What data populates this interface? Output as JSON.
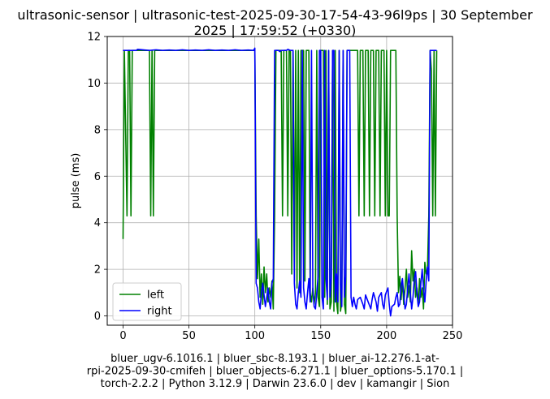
{
  "chart_data": {
    "type": "line",
    "title_lines": [
      "ultrasonic-sensor | ultrasonic-test-2025-09-30-17-54-43-96l9ps | 30 September",
      "2025 | 17:59:52 (+0330)"
    ],
    "xlabel_lines": [
      "bluer_ugv-6.1016.1 | bluer_sbc-8.193.1 | bluer_ai-12.276.1-at-",
      "rpi-2025-09-30-cmifeh | bluer_objects-6.271.1 | bluer_options-5.170.1 |",
      "torch-2.2.2 | Python 3.12.9 | Darwin 23.6.0 | dev | kamangir | Sion"
    ],
    "ylabel": "pulse (ms)",
    "xlim": [
      -12,
      250
    ],
    "ylim": [
      -0.4,
      12
    ],
    "xticks": [
      0,
      50,
      100,
      150,
      200,
      250
    ],
    "yticks": [
      0,
      2,
      4,
      6,
      8,
      10,
      12
    ],
    "grid": true,
    "legend_position": "lower-left",
    "series": [
      {
        "name": "left",
        "color": "#008000",
        "points": [
          [
            0,
            3.3
          ],
          [
            1,
            11.4
          ],
          [
            3,
            4.3
          ],
          [
            4,
            11.4
          ],
          [
            5,
            11.4
          ],
          [
            6,
            4.3
          ],
          [
            7,
            11.4
          ],
          [
            9,
            11.4
          ],
          [
            20,
            11.4
          ],
          [
            21,
            4.3
          ],
          [
            22,
            11.4
          ],
          [
            23,
            4.3
          ],
          [
            24,
            11.4
          ],
          [
            100,
            11.4
          ],
          [
            101,
            4.3
          ],
          [
            102,
            1.6
          ],
          [
            103,
            3.3
          ],
          [
            104,
            0.8
          ],
          [
            105,
            1.8
          ],
          [
            106,
            0.5
          ],
          [
            107,
            2.1
          ],
          [
            108,
            1.0
          ],
          [
            109,
            1.8
          ],
          [
            110,
            0.6
          ],
          [
            111,
            1.2
          ],
          [
            112,
            0.8
          ],
          [
            113,
            1.5
          ],
          [
            114,
            0.3
          ],
          [
            115,
            4.3
          ],
          [
            116,
            11.4
          ],
          [
            117,
            11.4
          ],
          [
            118,
            11.4
          ],
          [
            119,
            11.4
          ],
          [
            120,
            11.4
          ],
          [
            121,
            4.3
          ],
          [
            122,
            11.4
          ],
          [
            124,
            11.4
          ],
          [
            125,
            4.3
          ],
          [
            126,
            11.4
          ],
          [
            127,
            11.4
          ],
          [
            128,
            1.8
          ],
          [
            129,
            11.4
          ],
          [
            130,
            1.5
          ],
          [
            131,
            11.4
          ],
          [
            132,
            1.2
          ],
          [
            133,
            11.4
          ],
          [
            134,
            1.0
          ],
          [
            135,
            11.4
          ],
          [
            137,
            11.4
          ],
          [
            138,
            1.5
          ],
          [
            139,
            11.4
          ],
          [
            141,
            11.4
          ],
          [
            142,
            1.0
          ],
          [
            143,
            0.6
          ],
          [
            144,
            1.2
          ],
          [
            145,
            0.5
          ],
          [
            146,
            1.0
          ],
          [
            147,
            11.4
          ],
          [
            148,
            0.8
          ],
          [
            149,
            0.4
          ],
          [
            150,
            11.4
          ],
          [
            152,
            11.4
          ],
          [
            153,
            0.8
          ],
          [
            154,
            11.4
          ],
          [
            155,
            0.5
          ],
          [
            156,
            11.4
          ],
          [
            157,
            0.3
          ],
          [
            158,
            0.6
          ],
          [
            159,
            11.4
          ],
          [
            160,
            0.2
          ],
          [
            161,
            11.4
          ],
          [
            162,
            0.6
          ],
          [
            163,
            0.1
          ],
          [
            164,
            11.4
          ],
          [
            165,
            0.2
          ],
          [
            166,
            0.6
          ],
          [
            167,
            11.4
          ],
          [
            168,
            0.5
          ],
          [
            169,
            0.1
          ],
          [
            170,
            11.4
          ],
          [
            171,
            11.4
          ],
          [
            172,
            11.4
          ],
          [
            173,
            11.4
          ],
          [
            174,
            11.4
          ],
          [
            175,
            11.4
          ],
          [
            176,
            11.4
          ],
          [
            177,
            11.4
          ],
          [
            178,
            11.4
          ],
          [
            179,
            4.3
          ],
          [
            180,
            11.4
          ],
          [
            182,
            11.4
          ],
          [
            183,
            4.3
          ],
          [
            184,
            11.4
          ],
          [
            186,
            11.4
          ],
          [
            187,
            4.3
          ],
          [
            188,
            11.4
          ],
          [
            190,
            11.4
          ],
          [
            191,
            4.3
          ],
          [
            192,
            11.4
          ],
          [
            193,
            11.4
          ],
          [
            194,
            11.4
          ],
          [
            195,
            4.3
          ],
          [
            196,
            11.4
          ],
          [
            198,
            11.4
          ],
          [
            199,
            4.3
          ],
          [
            200,
            11.4
          ],
          [
            201,
            4.3
          ],
          [
            202,
            4.3
          ],
          [
            203,
            11.4
          ],
          [
            204,
            11.4
          ],
          [
            205,
            11.4
          ],
          [
            206,
            11.4
          ],
          [
            207,
            11.4
          ],
          [
            208,
            4.3
          ],
          [
            209,
            1.0
          ],
          [
            210,
            1.7
          ],
          [
            211,
            0.7
          ],
          [
            212,
            1.5
          ],
          [
            213,
            0.5
          ],
          [
            214,
            1.2
          ],
          [
            215,
            2.0
          ],
          [
            216,
            0.8
          ],
          [
            217,
            1.3
          ],
          [
            218,
            0.6
          ],
          [
            219,
            2.8
          ],
          [
            220,
            1.5
          ],
          [
            221,
            2.0
          ],
          [
            222,
            0.8
          ],
          [
            223,
            1.2
          ],
          [
            224,
            0.5
          ],
          [
            225,
            1.6
          ],
          [
            226,
            0.8
          ],
          [
            227,
            1.2
          ],
          [
            228,
            0.3
          ],
          [
            229,
            2.3
          ],
          [
            230,
            1.8
          ],
          [
            231,
            2.0
          ],
          [
            232,
            4.3
          ],
          [
            233,
            11.4
          ],
          [
            234,
            10.5
          ],
          [
            235,
            4.3
          ],
          [
            236,
            11.4
          ],
          [
            237,
            4.3
          ],
          [
            238,
            11.4
          ]
        ]
      },
      {
        "name": "right",
        "color": "#0000ff",
        "points": [
          [
            0,
            11.4
          ],
          [
            10,
            11.4
          ],
          [
            11,
            11.45
          ],
          [
            20,
            11.4
          ],
          [
            25,
            11.43
          ],
          [
            30,
            11.4
          ],
          [
            35,
            11.42
          ],
          [
            40,
            11.4
          ],
          [
            45,
            11.43
          ],
          [
            50,
            11.4
          ],
          [
            55,
            11.42
          ],
          [
            60,
            11.4
          ],
          [
            65,
            11.43
          ],
          [
            70,
            11.4
          ],
          [
            75,
            11.42
          ],
          [
            80,
            11.4
          ],
          [
            85,
            11.43
          ],
          [
            90,
            11.4
          ],
          [
            95,
            11.42
          ],
          [
            99,
            11.4
          ],
          [
            100,
            11.5
          ],
          [
            101,
            1.4
          ],
          [
            102,
            1.2
          ],
          [
            103,
            0.6
          ],
          [
            104,
            0.3
          ],
          [
            105,
            1.0
          ],
          [
            106,
            1.4
          ],
          [
            107,
            0.9
          ],
          [
            108,
            0.4
          ],
          [
            109,
            0.8
          ],
          [
            110,
            1.2
          ],
          [
            111,
            0.6
          ],
          [
            112,
            0.3
          ],
          [
            113,
            1.4
          ],
          [
            114,
            1.6
          ],
          [
            115,
            11.4
          ],
          [
            118,
            11.4
          ],
          [
            119,
            11.35
          ],
          [
            120,
            11.4
          ],
          [
            124,
            11.4
          ],
          [
            125,
            11.45
          ],
          [
            127,
            11.4
          ],
          [
            128,
            11.4
          ],
          [
            129,
            11.4
          ],
          [
            130,
            1.4
          ],
          [
            131,
            0.5
          ],
          [
            132,
            0.3
          ],
          [
            133,
            1.0
          ],
          [
            134,
            1.5
          ],
          [
            135,
            0.8
          ],
          [
            136,
            11.4
          ],
          [
            137,
            1.2
          ],
          [
            138,
            0.6
          ],
          [
            139,
            0.3
          ],
          [
            140,
            1.0
          ],
          [
            141,
            1.6
          ],
          [
            142,
            0.6
          ],
          [
            143,
            11.4
          ],
          [
            144,
            1.2
          ],
          [
            145,
            0.4
          ],
          [
            146,
            0.3
          ],
          [
            147,
            1.0
          ],
          [
            148,
            1.7
          ],
          [
            149,
            11.4
          ],
          [
            150,
            11.4
          ],
          [
            151,
            0.8
          ],
          [
            152,
            0.3
          ],
          [
            153,
            11.4
          ],
          [
            154,
            1.6
          ],
          [
            155,
            0.7
          ],
          [
            156,
            11.4
          ],
          [
            157,
            0.8
          ],
          [
            158,
            1.6
          ],
          [
            159,
            11.4
          ],
          [
            160,
            11.4
          ],
          [
            161,
            0.6
          ],
          [
            162,
            1.8
          ],
          [
            163,
            0.6
          ],
          [
            164,
            11.4
          ],
          [
            165,
            1.4
          ],
          [
            166,
            0.4
          ],
          [
            167,
            11.4
          ],
          [
            168,
            0.8
          ],
          [
            169,
            1.7
          ],
          [
            170,
            11.4
          ],
          [
            171,
            11.4
          ],
          [
            172,
            11.4
          ],
          [
            173,
            0.8
          ],
          [
            174,
            0.4
          ],
          [
            175,
            0.8
          ],
          [
            176,
            0.5
          ],
          [
            177,
            0.3
          ],
          [
            178,
            0.7
          ],
          [
            180,
            0.8
          ],
          [
            182,
            0.5
          ],
          [
            183,
            0.3
          ],
          [
            184,
            0.9
          ],
          [
            186,
            0.6
          ],
          [
            188,
            0.3
          ],
          [
            189,
            0.7
          ],
          [
            190,
            1.0
          ],
          [
            192,
            0.6
          ],
          [
            193,
            0.2
          ],
          [
            194,
            0.8
          ],
          [
            196,
            1.0
          ],
          [
            197,
            0.5
          ],
          [
            198,
            0.3
          ],
          [
            199,
            0.9
          ],
          [
            201,
            1.2
          ],
          [
            202,
            0.5
          ],
          [
            203,
            0.0
          ],
          [
            204,
            0.4
          ],
          [
            206,
            0.5
          ],
          [
            207,
            0.8
          ],
          [
            208,
            1.0
          ],
          [
            209,
            0.4
          ],
          [
            210,
            0.5
          ],
          [
            211,
            1.3
          ],
          [
            212,
            1.6
          ],
          [
            213,
            0.9
          ],
          [
            214,
            0.3
          ],
          [
            215,
            0.5
          ],
          [
            216,
            1.2
          ],
          [
            217,
            1.8
          ],
          [
            218,
            1.0
          ],
          [
            219,
            0.3
          ],
          [
            220,
            0.8
          ],
          [
            221,
            1.6
          ],
          [
            222,
            1.9
          ],
          [
            223,
            1.0
          ],
          [
            224,
            0.4
          ],
          [
            225,
            0.6
          ],
          [
            226,
            1.4
          ],
          [
            227,
            2.0
          ],
          [
            228,
            1.2
          ],
          [
            229,
            0.6
          ],
          [
            230,
            1.5
          ],
          [
            231,
            2.1
          ],
          [
            232,
            1.5
          ],
          [
            233,
            11.4
          ],
          [
            234,
            11.4
          ],
          [
            235,
            11.4
          ],
          [
            236,
            11.4
          ],
          [
            237,
            11.4
          ],
          [
            238,
            11.4
          ]
        ]
      }
    ]
  }
}
